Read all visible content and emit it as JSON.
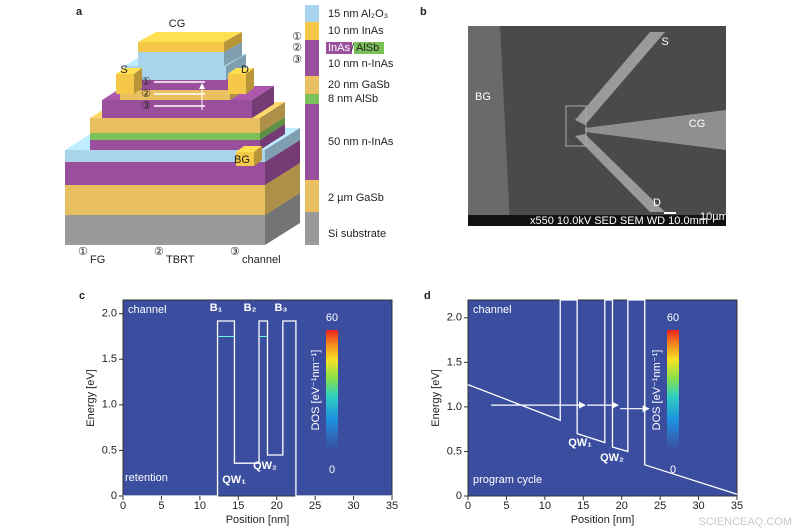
{
  "panel_a": {
    "panel": "a",
    "device_labels": [
      "CG",
      "S",
      "D",
      "BG"
    ],
    "layers": [
      "15 nm Al₂O₃",
      "10 nm InAs",
      "InAs",
      "AlSb",
      "10 nm n-InAs",
      "20 nm GaSb",
      "8 nm AlSb",
      "50 nm n-InAs",
      "2 µm GaSb",
      "Si substrate"
    ],
    "markers": [
      "①",
      "②",
      "③"
    ],
    "legend": [
      {
        "marker": "①",
        "name": "FG"
      },
      {
        "marker": "②",
        "name": "TBRT"
      },
      {
        "marker": "③",
        "name": "channel"
      }
    ]
  },
  "panel_b": {
    "panel": "b",
    "labels": [
      "BG",
      "S",
      "CG",
      "D"
    ],
    "scale_bar": "10µm",
    "info": "x550     10.0kV SED     SEM     WD 10.0mm"
  },
  "chart_data": [
    {
      "type": "line",
      "panel": "c",
      "xlabel": "Position [nm]",
      "ylabel": "Energy [eV]",
      "x": [
        0,
        12.3,
        12.3,
        14.5,
        14.5,
        17.7,
        17.7,
        18.8,
        18.8,
        20.8,
        20.8,
        22.5,
        22.5,
        35
      ],
      "series": [
        {
          "name": "band",
          "color": "#ffffff",
          "values": [
            0,
            0,
            1.92,
            1.92,
            0.36,
            0.36,
            1.92,
            1.92,
            0.45,
            0.45,
            1.92,
            1.92,
            0,
            0
          ]
        }
      ],
      "xlim": [
        0,
        35
      ],
      "xticks": [
        0,
        5,
        10,
        15,
        20,
        25,
        30,
        35
      ],
      "ylim": [
        0,
        2.15
      ],
      "yticks": [
        0,
        0.5,
        {
          "value": 1,
          "label": "1.0"
        },
        1.5,
        {
          "value": 2,
          "label": "2.0"
        }
      ],
      "annotations": [
        "channel",
        "retention",
        "B₁",
        "B₂",
        "B₃",
        "QW₁",
        "QW₂"
      ],
      "colorbar": {
        "label": "DOS [eV⁻¹nm⁻¹]",
        "ticks": [
          0,
          60
        ]
      },
      "background": "#3b4d9e"
    },
    {
      "type": "line",
      "panel": "d",
      "xlabel": "Position [nm]",
      "ylabel": "Energy [eV]",
      "x": [
        0,
        12,
        12,
        14.2,
        14.2,
        17.8,
        17.8,
        18.8,
        18.8,
        20.8,
        20.8,
        23,
        23,
        35
      ],
      "series": [
        {
          "name": "band",
          "color": "#ffffff",
          "values": [
            1.25,
            0.85,
            2.2,
            2.2,
            0.7,
            0.6,
            2.2,
            2.2,
            0.55,
            0.5,
            2.2,
            2.2,
            0.35,
            0.02
          ]
        }
      ],
      "xlim": [
        0,
        35
      ],
      "xticks": [
        0,
        5,
        10,
        15,
        20,
        25,
        30,
        35
      ],
      "ylim": [
        0,
        2.2
      ],
      "yticks": [
        0,
        0.5,
        {
          "value": 1,
          "label": "1.0"
        },
        1.5,
        {
          "value": 2,
          "label": "2.0"
        }
      ],
      "annotations": [
        "channel",
        "program cycle",
        "QW₁",
        "QW₂"
      ],
      "colorbar": {
        "label": "DOS [eV⁻¹nm⁻¹]",
        "ticks": [
          0,
          60
        ]
      },
      "background": "#3b4d9e"
    }
  ],
  "watermark": "SCIENCEAQ.COM"
}
